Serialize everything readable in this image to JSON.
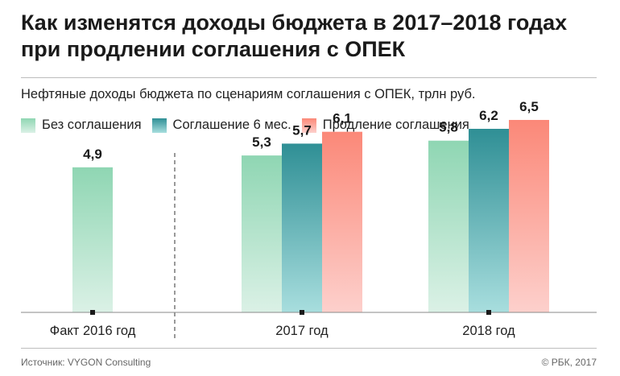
{
  "title": "Как изменятся доходы бюджета в 2017–2018 годах при продлении соглашения с ОПЕК",
  "chart_data": {
    "type": "bar",
    "subtitle": "Нефтяные доходы бюджета по сценариям соглашения с ОПЕК, трлн руб.",
    "categories": [
      "Факт 2016 год",
      "2017 год",
      "2018 год"
    ],
    "series": [
      {
        "name": "Без соглашения",
        "values": [
          4.9,
          5.3,
          5.8
        ],
        "labels": [
          "4,9",
          "5,3",
          "5,8"
        ]
      },
      {
        "name": "Соглашение 6 мес.",
        "values": [
          null,
          5.7,
          6.2
        ],
        "labels": [
          null,
          "5,7",
          "6,2"
        ]
      },
      {
        "name": "Продление соглашения",
        "values": [
          null,
          6.1,
          6.5
        ],
        "labels": [
          null,
          "6,1",
          "6,5"
        ]
      }
    ],
    "ylim": [
      0,
      9.3
    ],
    "xlabel": "",
    "ylabel": "",
    "colors": {
      "Без соглашения": [
        "#8fd6b3",
        "#dbf1e6"
      ],
      "Соглашение 6 мес.": [
        "#2f8f95",
        "#a8dede"
      ],
      "Продление соглашения": [
        "#fb8878",
        "#fdd0cc"
      ]
    }
  },
  "footer": {
    "source": "Источник: VYGON Consulting",
    "copyright": "© РБК, 2017"
  }
}
